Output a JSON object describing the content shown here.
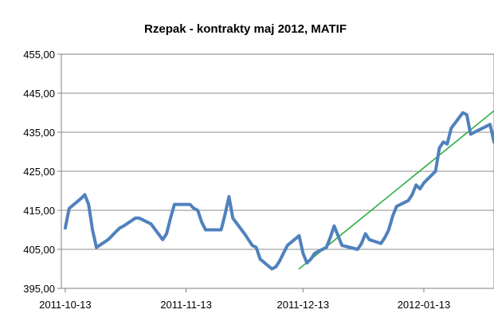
{
  "chart_data": {
    "type": "line",
    "title": "Rzepak - kontrakty maj 2012, MATIF",
    "xlabel": "",
    "ylabel": "",
    "ylim": [
      395,
      455
    ],
    "y_ticks": [
      "455,00",
      "445,00",
      "435,00",
      "425,00",
      "415,00",
      "405,00",
      "395,00"
    ],
    "y_tick_values": [
      455,
      445,
      435,
      425,
      415,
      405,
      395
    ],
    "x_tick_labels": [
      "2011-10-13",
      "2011-11-13",
      "2011-12-13",
      "2012-01-13"
    ],
    "x_tick_dates": [
      "2011-10-13",
      "2011-11-13",
      "2011-12-13",
      "2012-01-13"
    ],
    "x_range": [
      "2011-10-12",
      "2012-01-31"
    ],
    "grid": {
      "horizontal": true,
      "vertical": false
    },
    "legend": "none",
    "series": [
      {
        "color": "#4f81bd",
        "points": [
          [
            "2011-10-13",
            410.5
          ],
          [
            "2011-10-14",
            415.5
          ],
          [
            "2011-10-17",
            418.0
          ],
          [
            "2011-10-18",
            419.0
          ],
          [
            "2011-10-19",
            416.5
          ],
          [
            "2011-10-20",
            410.0
          ],
          [
            "2011-10-21",
            405.5
          ],
          [
            "2011-10-24",
            407.5
          ],
          [
            "2011-10-25",
            408.5
          ],
          [
            "2011-10-26",
            409.5
          ],
          [
            "2011-10-27",
            410.5
          ],
          [
            "2011-10-28",
            411.0
          ],
          [
            "2011-10-31",
            413.0
          ],
          [
            "2011-11-01",
            413.0
          ],
          [
            "2011-11-02",
            412.5
          ],
          [
            "2011-11-03",
            412.0
          ],
          [
            "2011-11-04",
            411.5
          ],
          [
            "2011-11-07",
            407.5
          ],
          [
            "2011-11-08",
            409.0
          ],
          [
            "2011-11-09",
            413.0
          ],
          [
            "2011-11-10",
            416.5
          ],
          [
            "2011-11-11",
            416.5
          ],
          [
            "2011-11-14",
            416.5
          ],
          [
            "2011-11-15",
            415.5
          ],
          [
            "2011-11-16",
            415.0
          ],
          [
            "2011-11-17",
            412.0
          ],
          [
            "2011-11-18",
            410.0
          ],
          [
            "2011-11-21",
            410.0
          ],
          [
            "2011-11-22",
            410.0
          ],
          [
            "2011-11-23",
            414.0
          ],
          [
            "2011-11-24",
            418.5
          ],
          [
            "2011-11-25",
            413.0
          ],
          [
            "2011-11-28",
            409.0
          ],
          [
            "2011-11-29",
            407.5
          ],
          [
            "2011-11-30",
            406.0
          ],
          [
            "2011-12-01",
            405.5
          ],
          [
            "2011-12-02",
            402.5
          ],
          [
            "2011-12-05",
            400.0
          ],
          [
            "2011-12-06",
            400.5
          ],
          [
            "2011-12-07",
            402.0
          ],
          [
            "2011-12-08",
            404.0
          ],
          [
            "2011-12-09",
            406.0
          ],
          [
            "2011-12-12",
            408.5
          ],
          [
            "2011-12-13",
            404.0
          ],
          [
            "2011-12-14",
            401.5
          ],
          [
            "2011-12-15",
            402.5
          ],
          [
            "2011-12-16",
            404.0
          ],
          [
            "2011-12-19",
            405.5
          ],
          [
            "2011-12-20",
            408.0
          ],
          [
            "2011-12-21",
            411.0
          ],
          [
            "2011-12-22",
            408.5
          ],
          [
            "2011-12-23",
            406.0
          ],
          [
            "2011-12-27",
            405.0
          ],
          [
            "2011-12-28",
            406.5
          ],
          [
            "2011-12-29",
            409.0
          ],
          [
            "2011-12-30",
            407.5
          ],
          [
            "2012-01-02",
            406.5
          ],
          [
            "2012-01-03",
            408.0
          ],
          [
            "2012-01-04",
            410.0
          ],
          [
            "2012-01-05",
            413.5
          ],
          [
            "2012-01-06",
            416.0
          ],
          [
            "2012-01-09",
            417.5
          ],
          [
            "2012-01-10",
            419.0
          ],
          [
            "2012-01-11",
            421.5
          ],
          [
            "2012-01-12",
            420.5
          ],
          [
            "2012-01-13",
            422.0
          ],
          [
            "2012-01-16",
            425.0
          ],
          [
            "2012-01-17",
            431.0
          ],
          [
            "2012-01-18",
            432.5
          ],
          [
            "2012-01-19",
            432.0
          ],
          [
            "2012-01-20",
            436.0
          ],
          [
            "2012-01-23",
            440.0
          ],
          [
            "2012-01-24",
            439.5
          ],
          [
            "2012-01-25",
            434.5
          ],
          [
            "2012-01-26",
            435.0
          ],
          [
            "2012-01-27",
            435.5
          ],
          [
            "2012-01-30",
            437.0
          ],
          [
            "2012-01-31",
            432.5
          ]
        ]
      },
      {
        "color": "#2db043",
        "points": [
          [
            "2011-12-12",
            400.0
          ],
          [
            "2012-01-31",
            440.5
          ]
        ]
      }
    ]
  }
}
